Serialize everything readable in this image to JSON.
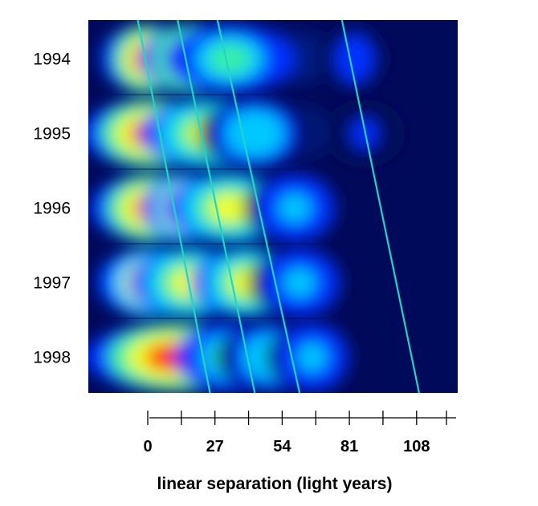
{
  "chart_data": {
    "type": "heatmap",
    "title": "",
    "xlabel": "linear separation (light years)",
    "ylabel": "",
    "x_ticks": [
      0,
      27,
      54,
      81,
      108
    ],
    "x_minor_ticks": [
      13.5,
      40.5,
      67.5,
      94.5
    ],
    "xlim": [
      0,
      120
    ],
    "grid": false,
    "legend": "none",
    "colormap": [
      "#000a5a",
      "#0033ff",
      "#00c8ff",
      "#38f0a0",
      "#f0ff20",
      "#ffa000",
      "#ff1400"
    ],
    "motion_line_color": "#22d3c8",
    "rows": [
      {
        "year": "1994",
        "blobs": [
          {
            "x": 0,
            "w": 9,
            "intensity": 1.0
          },
          {
            "x": 17,
            "w": 10,
            "intensity": 0.95
          },
          {
            "x": 33,
            "w": 13,
            "intensity": 0.45
          },
          {
            "x": 83,
            "w": 7,
            "intensity": 0.18
          }
        ]
      },
      {
        "year": "1995",
        "blobs": [
          {
            "x": 2,
            "w": 14,
            "intensity": 1.0
          },
          {
            "x": 25,
            "w": 14,
            "intensity": 0.7
          },
          {
            "x": 43,
            "w": 11,
            "intensity": 0.4
          },
          {
            "x": 87,
            "w": 8,
            "intensity": 0.16
          }
        ]
      },
      {
        "year": "1996",
        "blobs": [
          {
            "x": 3,
            "w": 13,
            "intensity": 1.0
          },
          {
            "x": 14,
            "w": 8,
            "intensity": 0.9
          },
          {
            "x": 33,
            "w": 13,
            "intensity": 0.62
          },
          {
            "x": 59,
            "w": 10,
            "intensity": 0.35
          }
        ]
      },
      {
        "year": "1997",
        "blobs": [
          {
            "x": 2,
            "w": 11,
            "intensity": 0.85
          },
          {
            "x": 17,
            "w": 12,
            "intensity": 0.72
          },
          {
            "x": 40,
            "w": 11,
            "intensity": 0.68
          },
          {
            "x": 61,
            "w": 10,
            "intensity": 0.35
          }
        ]
      },
      {
        "year": "1998",
        "blobs": [
          {
            "x": 11,
            "w": 18,
            "intensity": 1.0
          },
          {
            "x": 33,
            "w": 11,
            "intensity": 0.55
          },
          {
            "x": 50,
            "w": 11,
            "intensity": 0.38
          },
          {
            "x": 66,
            "w": 9,
            "intensity": 0.28
          }
        ]
      }
    ],
    "motion_lines": [
      {
        "start_1994": -4,
        "end_1998": 25
      },
      {
        "start_1994": 12,
        "end_1998": 43
      },
      {
        "start_1994": 28,
        "end_1998": 61
      },
      {
        "start_1994": 78,
        "end_1998": 109
      }
    ]
  }
}
